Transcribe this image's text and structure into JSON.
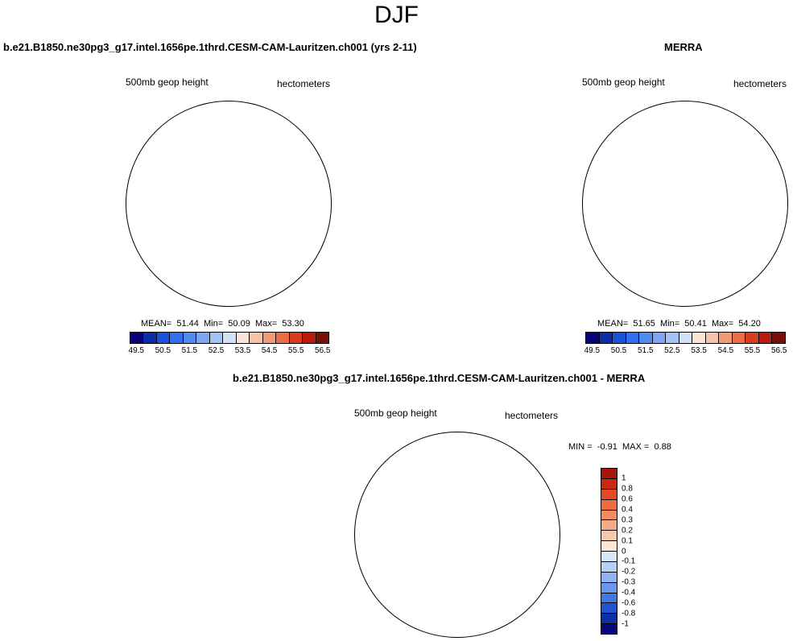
{
  "header": {
    "title": "DJF"
  },
  "chart_data": [
    {
      "type": "heatmap",
      "title": "b.e21.B1850.ne30pg3_g17.intel.1656pe.1thrd.CESM-CAM-Lauritzen.ch001 (yrs 2-11)",
      "field_label": "500mb geop height",
      "units": "hectometers",
      "projection": "south-polar-stereographic",
      "stats": {
        "mean": "51.44",
        "min": "50.09",
        "max": "53.30"
      },
      "colorbar": {
        "orientation": "horizontal",
        "levels": [
          49.5,
          50,
          50.5,
          51,
          51.5,
          52,
          52.5,
          53,
          53.5,
          54,
          54.5,
          55,
          55.5,
          56,
          56.5
        ],
        "tick_labels": [
          "49.5",
          "50.5",
          "51.5",
          "52.5",
          "53.5",
          "54.5",
          "55.5",
          "56.5"
        ],
        "colors": [
          "#08037a",
          "#0b2da8",
          "#1a52d8",
          "#2f6ff0",
          "#4f8cf2",
          "#7aa6f4",
          "#a3c3f5",
          "#d4e2f6",
          "#fae6d8",
          "#f8c2a4",
          "#f39a74",
          "#ec6d45",
          "#dc3c1e",
          "#b81a0c",
          "#7b0d07"
        ]
      }
    },
    {
      "type": "heatmap",
      "title": "MERRA",
      "field_label": "500mb geop height",
      "units": "hectometers",
      "projection": "south-polar-stereographic",
      "stats": {
        "mean": "51.65",
        "min": "50.41",
        "max": "54.20"
      },
      "colorbar": {
        "orientation": "horizontal",
        "levels": [
          49.5,
          50,
          50.5,
          51,
          51.5,
          52,
          52.5,
          53,
          53.5,
          54,
          54.5,
          55,
          55.5,
          56,
          56.5
        ],
        "tick_labels": [
          "49.5",
          "50.5",
          "51.5",
          "52.5",
          "53.5",
          "54.5",
          "55.5",
          "56.5"
        ],
        "colors": [
          "#08037a",
          "#0b2da8",
          "#1a52d8",
          "#2f6ff0",
          "#4f8cf2",
          "#7aa6f4",
          "#a3c3f5",
          "#d4e2f6",
          "#fae6d8",
          "#f8c2a4",
          "#f39a74",
          "#ec6d45",
          "#dc3c1e",
          "#b81a0c",
          "#7b0d07"
        ]
      }
    },
    {
      "type": "heatmap",
      "title": "b.e21.B1850.ne30pg3_g17.intel.1656pe.1thrd.CESM-CAM-Lauritzen.ch001 - MERRA",
      "field_label": "500mb geop height",
      "units": "hectometers",
      "projection": "south-polar-stereographic",
      "stats": {
        "min": "-0.91",
        "max": "0.88"
      },
      "colorbar": {
        "orientation": "vertical",
        "tick_labels": [
          "1",
          "0.8",
          "0.6",
          "0.4",
          "0.3",
          "0.2",
          "0.1",
          "0",
          "-0.1",
          "-0.2",
          "-0.3",
          "-0.4",
          "-0.6",
          "-0.8",
          "-1"
        ],
        "colors": [
          "#a8150b",
          "#c9290f",
          "#e24a22",
          "#ef6a3f",
          "#f38b62",
          "#f6ab88",
          "#f8c8ad",
          "#fbe6d6",
          "#d9e6f6",
          "#b7cff3",
          "#91b3f1",
          "#6b96ee",
          "#4476e6",
          "#2052d4",
          "#0d2fa8",
          "#08067e"
        ]
      }
    }
  ],
  "labels": {
    "mean_prefix": "MEAN=",
    "min_prefix": "Min=",
    "max_prefix": "Max=",
    "diff_min_prefix": "MIN =",
    "diff_max_prefix": "MAX ="
  }
}
